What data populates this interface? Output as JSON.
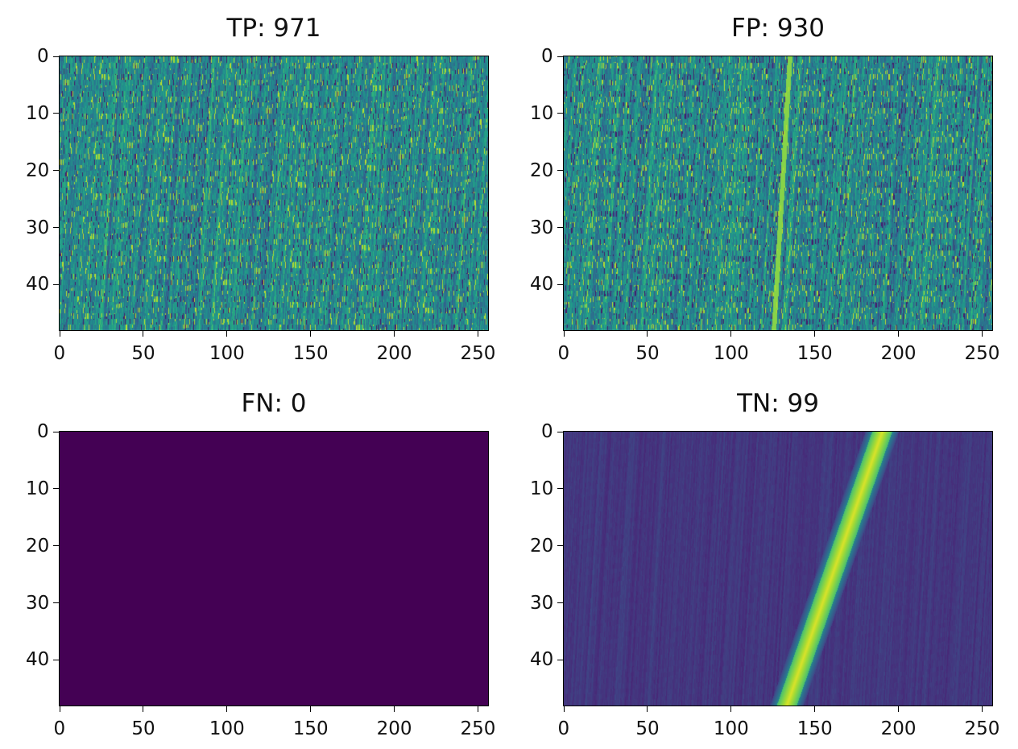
{
  "figure": {
    "panels": [
      {
        "title": "TP: 971"
      },
      {
        "title": "FP: 930"
      },
      {
        "title": "FN: 0"
      },
      {
        "title": "TN: 99"
      }
    ]
  },
  "chart_data": [
    {
      "type": "heatmap",
      "title": "TP: 971",
      "colormap": "viridis",
      "x_range": [
        0,
        256
      ],
      "y_range": [
        0,
        48
      ],
      "y_inverted": true,
      "xticks": [
        0,
        50,
        100,
        150,
        200,
        250
      ],
      "yticks": [
        0,
        10,
        20,
        30,
        40
      ],
      "pattern": "noisy diagonal streaks, mid-range (teal/green) values"
    },
    {
      "type": "heatmap",
      "title": "FP: 930",
      "colormap": "viridis",
      "x_range": [
        0,
        256
      ],
      "y_range": [
        0,
        48
      ],
      "y_inverted": true,
      "xticks": [
        0,
        50,
        100,
        150,
        200,
        250
      ],
      "yticks": [
        0,
        10,
        20,
        30,
        40
      ],
      "pattern": "noisy diagonal streaks with a faint bright line near x≈125-135"
    },
    {
      "type": "heatmap",
      "title": "FN: 0",
      "colormap": "viridis",
      "x_range": [
        0,
        256
      ],
      "y_range": [
        0,
        48
      ],
      "y_inverted": true,
      "xticks": [
        0,
        50,
        100,
        150,
        200,
        250
      ],
      "yticks": [
        0,
        10,
        20,
        30,
        40
      ],
      "pattern": "uniform minimum value"
    },
    {
      "type": "heatmap",
      "title": "TN: 99",
      "colormap": "viridis",
      "x_range": [
        0,
        256
      ],
      "y_range": [
        0,
        48
      ],
      "y_inverted": true,
      "xticks": [
        0,
        50,
        100,
        150,
        200,
        250
      ],
      "yticks": [
        0,
        10,
        20,
        30,
        40
      ],
      "pattern": "dark background with one bright diagonal band from x≈190 at y=0 to x≈133 at y=48",
      "band": {
        "x_at_y0": 190,
        "x_at_y48": 133,
        "width": 6
      }
    }
  ]
}
